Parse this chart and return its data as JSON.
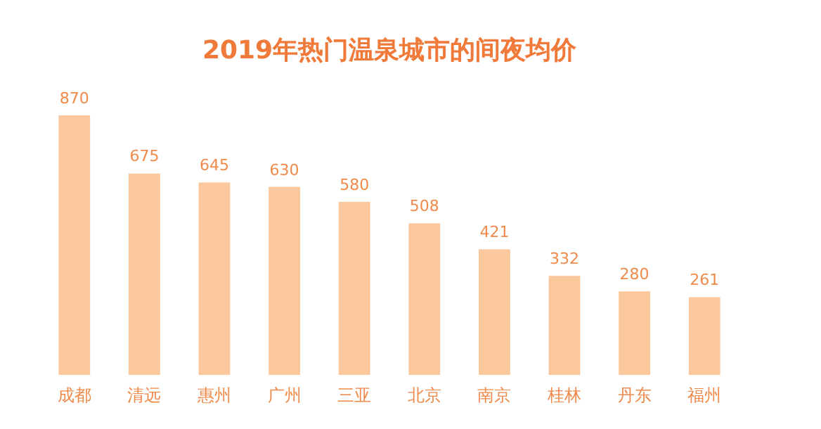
{
  "chart_data": {
    "type": "bar",
    "title": "2019年热门温泉城市的间夜均价",
    "categories": [
      "成都",
      "清远",
      "惠州",
      "广州",
      "三亚",
      "北京",
      "南京",
      "桂林",
      "丹东",
      "福州"
    ],
    "values": [
      870,
      675,
      645,
      630,
      580,
      508,
      421,
      332,
      280,
      261
    ],
    "color": "#fbc89e",
    "data_labels": true,
    "grid": false,
    "legend": false
  }
}
